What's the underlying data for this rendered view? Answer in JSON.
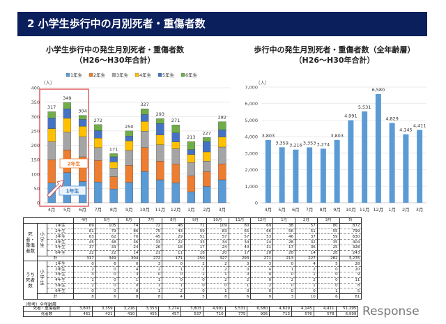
{
  "header": {
    "title": "2  小学生歩行中の月別死者・重傷者数"
  },
  "chart_data": [
    {
      "type": "bar",
      "stacked": true,
      "title": "小学生歩行中の発生月別死者・重傷者数",
      "subtitle": "（H26～H30年合計）",
      "ylabel": "（人）",
      "ylim": [
        0,
        400
      ],
      "yticks": [
        0,
        50,
        100,
        150,
        200,
        250,
        300,
        350,
        400
      ],
      "grid": true,
      "legend": "top",
      "categories": [
        "4月",
        "5月",
        "6月",
        "7月",
        "8月",
        "9月",
        "10月",
        "11月",
        "12月",
        "1月",
        "2月",
        "3月"
      ],
      "series": [
        {
          "name": "1年生",
          "color": "#5b9bd5",
          "values": [
            69,
            105,
            74,
            72,
            48,
            71,
            109,
            80,
            69,
            38,
            57,
            80
          ]
        },
        {
          "name": "2年生",
          "color": "#ed7d31",
          "values": [
            81,
            79,
            86,
            75,
            43,
            59,
            83,
            65,
            66,
            56,
            51,
            55
          ]
        },
        {
          "name": "3年生",
          "color": "#a5a5a5",
          "values": [
            63,
            62,
            70,
            45,
            29,
            52,
            57,
            57,
            53,
            46,
            37,
            59
          ]
        },
        {
          "name": "4年生",
          "color": "#ffc000",
          "values": [
            45,
            48,
            36,
            33,
            22,
            33,
            34,
            34,
            24,
            28,
            32,
            35
          ]
        },
        {
          "name": "5年生",
          "color": "#4472c4",
          "values": [
            37,
            33,
            24,
            26,
            18,
            17,
            24,
            40,
            31,
            17,
            36,
            25
          ]
        },
        {
          "name": "6年生",
          "color": "#70ad47",
          "values": [
            22,
            22,
            14,
            21,
            11,
            18,
            20,
            17,
            28,
            28,
            14,
            28
          ]
        }
      ],
      "totals": [
        317,
        349,
        304,
        272,
        171,
        250,
        327,
        293,
        271,
        213,
        227,
        282
      ],
      "annotations": [
        "2年生",
        "1年生"
      ],
      "highlight_color": "#d9343a"
    },
    {
      "type": "bar",
      "title": "歩行中の発生月別死者・重傷者数（全年齢層）",
      "subtitle": "（H26～H30年合計）",
      "ylabel": "（人）",
      "ylim": [
        0,
        7000
      ],
      "yticks": [
        0,
        1000,
        2000,
        3000,
        4000,
        5000,
        6000,
        7000
      ],
      "grid": true,
      "color": "#5b9bd5",
      "categories": [
        "4月",
        "5月",
        "6月",
        "7月",
        "8月",
        "9月",
        "10月",
        "11月",
        "12月",
        "1月",
        "2月",
        "3月"
      ],
      "values": [
        3803,
        3359,
        3216,
        3353,
        3274,
        3803,
        4991,
        5531,
        6580,
        4829,
        4145,
        4411
      ],
      "labels": [
        "3,803",
        "3,359",
        "3,216",
        "3,353",
        "3,274",
        "3,803",
        "4,991",
        "5,531",
        "6,580",
        "4,829",
        "4,145",
        "4,411"
      ]
    }
  ],
  "table": {
    "columns": [
      "4月",
      "5月",
      "6月",
      "7月",
      "8月",
      "9月",
      "10月",
      "11月",
      "12月",
      "1月",
      "2月",
      "3月",
      "計"
    ],
    "group1": "死者・重傷者数",
    "group2": "うち死者数",
    "sub": "小学生",
    "total_label": "計",
    "grades": [
      "1年生",
      "2年生",
      "3年生",
      "4年生",
      "5年生",
      "6年生"
    ],
    "casualties": [
      [
        "69",
        "105",
        "74",
        "72",
        "48",
        "71",
        "109",
        "80",
        "69",
        "38",
        "57",
        "80",
        "872"
      ],
      [
        "81",
        "79",
        "86",
        "75",
        "43",
        "59",
        "83",
        "65",
        "66",
        "56",
        "51",
        "55",
        "799"
      ],
      [
        "63",
        "62",
        "70",
        "45",
        "29",
        "52",
        "57",
        "57",
        "53",
        "46",
        "37",
        "59",
        "630"
      ],
      [
        "45",
        "48",
        "36",
        "33",
        "22",
        "33",
        "34",
        "34",
        "24",
        "28",
        "32",
        "35",
        "404"
      ],
      [
        "37",
        "33",
        "24",
        "26",
        "18",
        "17",
        "24",
        "40",
        "31",
        "17",
        "36",
        "25",
        "328"
      ],
      [
        "22",
        "22",
        "14",
        "21",
        "11",
        "18",
        "20",
        "17",
        "28",
        "28",
        "14",
        "28",
        "243"
      ],
      [
        "317",
        "349",
        "304",
        "272",
        "171",
        "250",
        "327",
        "293",
        "271",
        "213",
        "227",
        "282",
        "3,276"
      ]
    ],
    "deaths": [
      [
        "0",
        "6",
        "0",
        "3",
        "0",
        "2",
        "2",
        "3",
        "3",
        "0",
        "4",
        "5",
        "28"
      ],
      [
        "2",
        "0",
        "4",
        "2",
        "1",
        "2",
        "2",
        "0",
        "4",
        "1",
        "2",
        "0",
        "20"
      ],
      [
        "3",
        "0",
        "3",
        "0",
        "0",
        "1",
        "1",
        "0",
        "0",
        "0",
        "1",
        "0",
        "9"
      ],
      [
        "1",
        "0",
        "1",
        "1",
        "0",
        "0",
        "2",
        "2",
        "0",
        "2",
        "2",
        "0",
        "11"
      ],
      [
        "2",
        "0",
        "0",
        "1",
        "1",
        "0",
        "0",
        "1",
        "2",
        "0",
        "1",
        "0",
        "8"
      ],
      [
        "0",
        "0",
        "0",
        "1",
        "2",
        "0",
        "1",
        "0",
        "0",
        "0",
        "0",
        "1",
        "5"
      ],
      [
        "8",
        "6",
        "8",
        "8",
        "4",
        "5",
        "8",
        "6",
        "9",
        "3",
        "10",
        "6",
        "81"
      ]
    ],
    "ref_label": "（参考）全年齢層",
    "ref_rows": [
      {
        "label": "死者・重傷者数",
        "values": [
          "3,803",
          "3,359",
          "3,216",
          "3,353",
          "3,274",
          "3,803",
          "4,991",
          "5,531",
          "6,580",
          "4,829",
          "4,145",
          "4,411",
          "51,295"
        ]
      },
      {
        "label": "死者数",
        "values": [
          "461",
          "421",
          "410",
          "455",
          "457",
          "537",
          "710",
          "775",
          "906",
          "713",
          "576",
          "578",
          "6,999"
        ]
      }
    ]
  },
  "watermark": "Response"
}
